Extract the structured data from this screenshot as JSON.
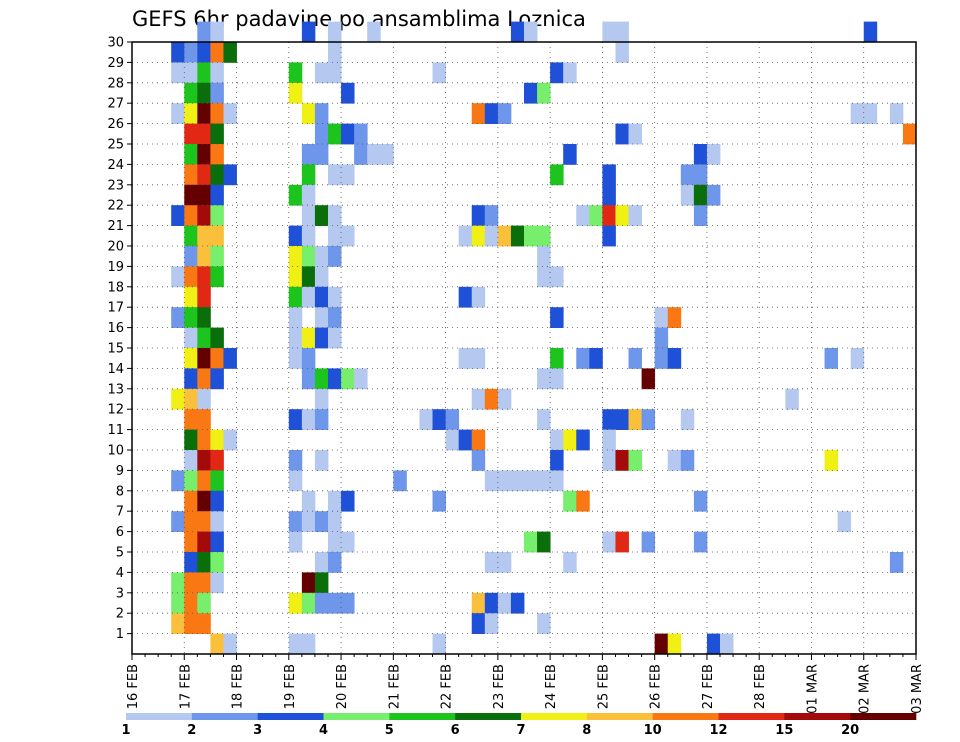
{
  "chart_data": {
    "type": "heatmap",
    "title": "GEFS 6hr padavine po ansamblima Loznica",
    "xlabel": "",
    "ylabel": "",
    "x_ticks": [
      "16 FEB",
      "17 FEB",
      "18 FEB",
      "19 FEB",
      "20 FEB",
      "21 FEB",
      "22 FEB",
      "23 FEB",
      "24 FEB",
      "25 FEB",
      "26 FEB",
      "27 FEB",
      "28 FEB",
      "01 MAR",
      "02 MAR",
      "03 MAR"
    ],
    "y_ticks": [
      1,
      2,
      3,
      4,
      5,
      6,
      7,
      8,
      9,
      10,
      11,
      12,
      13,
      14,
      15,
      16,
      17,
      18,
      19,
      20,
      21,
      22,
      23,
      24,
      25,
      26,
      27,
      28,
      29,
      30
    ],
    "grid": true,
    "time_step_hours": 6,
    "colorbar": {
      "labels": [
        "1",
        "2",
        "3",
        "4",
        "5",
        "6",
        "7",
        "8",
        "10",
        "12",
        "15",
        "20"
      ],
      "colors": [
        "#b4c8f0",
        "#6e96ea",
        "#1e50d8",
        "#78ef6c",
        "#1ec41e",
        "#0a6e0a",
        "#f0f014",
        "#fac03c",
        "#fa7814",
        "#e12814",
        "#a50a0a",
        "#640000"
      ]
    },
    "level_palette": [
      "#b4c8f0",
      "#6e96ea",
      "#1e50d8",
      "#78ef6c",
      "#1ec41e",
      "#0a6e0a",
      "#f0f014",
      "#fac03c",
      "#fa7814",
      "#e12814",
      "#a50a0a",
      "#640000"
    ],
    "cells_note": "each cell: [member, x_day (days since 16 FEB), level index into level_palette]",
    "cells": [
      [
        30,
        1.25,
        1
      ],
      [
        30,
        1.5,
        0
      ],
      [
        30,
        3.25,
        2
      ],
      [
        30,
        3.75,
        0
      ],
      [
        30,
        4.5,
        0
      ],
      [
        30,
        7.25,
        2
      ],
      [
        30,
        7.5,
        0
      ],
      [
        30,
        9.0,
        0
      ],
      [
        30,
        9.25,
        0
      ],
      [
        30,
        14.0,
        2
      ],
      [
        29,
        0.75,
        2
      ],
      [
        29,
        1.0,
        1
      ],
      [
        29,
        1.25,
        2
      ],
      [
        29,
        1.5,
        8
      ],
      [
        29,
        1.75,
        5
      ],
      [
        29,
        3.75,
        0
      ],
      [
        29,
        9.25,
        0
      ],
      [
        28,
        0.75,
        0
      ],
      [
        28,
        1.0,
        0
      ],
      [
        28,
        1.25,
        4
      ],
      [
        28,
        1.5,
        0
      ],
      [
        28,
        3.0,
        4
      ],
      [
        28,
        3.5,
        0
      ],
      [
        28,
        3.75,
        0
      ],
      [
        28,
        5.75,
        0
      ],
      [
        28,
        8.0,
        2
      ],
      [
        28,
        8.25,
        0
      ],
      [
        27,
        1.0,
        4
      ],
      [
        27,
        1.25,
        5
      ],
      [
        27,
        1.5,
        1
      ],
      [
        27,
        3.0,
        6
      ],
      [
        27,
        4.0,
        2
      ],
      [
        27,
        7.5,
        2
      ],
      [
        27,
        7.75,
        3
      ],
      [
        26,
        0.75,
        0
      ],
      [
        26,
        1.0,
        6
      ],
      [
        26,
        1.25,
        11
      ],
      [
        26,
        1.5,
        8
      ],
      [
        26,
        1.75,
        0
      ],
      [
        26,
        3.25,
        6
      ],
      [
        26,
        3.5,
        1
      ],
      [
        26,
        6.5,
        8
      ],
      [
        26,
        6.75,
        2
      ],
      [
        26,
        7.0,
        1
      ],
      [
        26,
        13.75,
        0
      ],
      [
        26,
        14.0,
        0
      ],
      [
        26,
        14.5,
        0
      ],
      [
        25,
        1.0,
        9
      ],
      [
        25,
        1.25,
        9
      ],
      [
        25,
        1.5,
        5
      ],
      [
        25,
        3.5,
        1
      ],
      [
        25,
        3.75,
        4
      ],
      [
        25,
        4.0,
        2
      ],
      [
        25,
        4.25,
        1
      ],
      [
        25,
        9.25,
        2
      ],
      [
        25,
        9.5,
        0
      ],
      [
        25,
        14.75,
        8
      ],
      [
        24,
        1.0,
        4
      ],
      [
        24,
        1.25,
        11
      ],
      [
        24,
        1.5,
        8
      ],
      [
        24,
        3.25,
        1
      ],
      [
        24,
        3.5,
        1
      ],
      [
        24,
        4.25,
        1
      ],
      [
        24,
        4.5,
        0
      ],
      [
        24,
        4.75,
        0
      ],
      [
        24,
        8.25,
        2
      ],
      [
        24,
        10.75,
        2
      ],
      [
        24,
        11.0,
        0
      ],
      [
        23,
        1.0,
        8
      ],
      [
        23,
        1.25,
        9
      ],
      [
        23,
        1.5,
        5
      ],
      [
        23,
        1.75,
        2
      ],
      [
        23,
        3.25,
        4
      ],
      [
        23,
        3.75,
        0
      ],
      [
        23,
        4.0,
        0
      ],
      [
        23,
        8.0,
        4
      ],
      [
        23,
        9.0,
        2
      ],
      [
        23,
        10.5,
        1
      ],
      [
        23,
        10.75,
        1
      ],
      [
        22,
        1.0,
        11
      ],
      [
        22,
        1.25,
        11
      ],
      [
        22,
        1.5,
        2
      ],
      [
        22,
        3.0,
        4
      ],
      [
        22,
        3.25,
        0
      ],
      [
        22,
        9.0,
        2
      ],
      [
        22,
        10.5,
        0
      ],
      [
        22,
        10.75,
        5
      ],
      [
        22,
        11.0,
        1
      ],
      [
        21,
        0.75,
        2
      ],
      [
        21,
        1.0,
        8
      ],
      [
        21,
        1.25,
        10
      ],
      [
        21,
        1.5,
        3
      ],
      [
        21,
        3.25,
        0
      ],
      [
        21,
        3.5,
        5
      ],
      [
        21,
        3.75,
        0
      ],
      [
        21,
        6.5,
        2
      ],
      [
        21,
        6.75,
        1
      ],
      [
        21,
        8.5,
        0
      ],
      [
        21,
        8.75,
        3
      ],
      [
        21,
        9.0,
        9
      ],
      [
        21,
        9.25,
        6
      ],
      [
        21,
        9.5,
        0
      ],
      [
        21,
        10.75,
        1
      ],
      [
        20,
        1.0,
        4
      ],
      [
        20,
        1.25,
        7
      ],
      [
        20,
        1.5,
        7
      ],
      [
        20,
        3.0,
        2
      ],
      [
        20,
        3.25,
        0
      ],
      [
        20,
        3.75,
        0
      ],
      [
        20,
        4.0,
        0
      ],
      [
        20,
        6.25,
        0
      ],
      [
        20,
        6.5,
        6
      ],
      [
        20,
        6.75,
        0
      ],
      [
        20,
        7.0,
        7
      ],
      [
        20,
        7.25,
        5
      ],
      [
        20,
        7.5,
        3
      ],
      [
        20,
        7.75,
        3
      ],
      [
        20,
        9.0,
        2
      ],
      [
        19,
        1.0,
        1
      ],
      [
        19,
        1.25,
        7
      ],
      [
        19,
        1.5,
        3
      ],
      [
        19,
        3.0,
        6
      ],
      [
        19,
        3.25,
        3
      ],
      [
        19,
        3.5,
        0
      ],
      [
        19,
        3.75,
        1
      ],
      [
        19,
        7.75,
        0
      ],
      [
        18,
        0.75,
        0
      ],
      [
        18,
        1.0,
        8
      ],
      [
        18,
        1.25,
        9
      ],
      [
        18,
        1.5,
        4
      ],
      [
        18,
        3.0,
        6
      ],
      [
        18,
        3.25,
        5
      ],
      [
        18,
        3.5,
        0
      ],
      [
        18,
        7.75,
        0
      ],
      [
        18,
        8.0,
        0
      ],
      [
        17,
        1.0,
        6
      ],
      [
        17,
        1.25,
        9
      ],
      [
        17,
        3.0,
        4
      ],
      [
        17,
        3.25,
        0
      ],
      [
        17,
        3.5,
        2
      ],
      [
        17,
        3.75,
        0
      ],
      [
        17,
        6.25,
        2
      ],
      [
        17,
        6.5,
        0
      ],
      [
        16,
        0.75,
        1
      ],
      [
        16,
        1.0,
        4
      ],
      [
        16,
        1.25,
        5
      ],
      [
        16,
        3.0,
        0
      ],
      [
        16,
        3.5,
        0
      ],
      [
        16,
        3.75,
        1
      ],
      [
        16,
        8.0,
        2
      ],
      [
        16,
        10.0,
        0
      ],
      [
        16,
        10.25,
        8
      ],
      [
        15,
        1.0,
        0
      ],
      [
        15,
        1.25,
        4
      ],
      [
        15,
        1.5,
        5
      ],
      [
        15,
        3.0,
        0
      ],
      [
        15,
        3.25,
        6
      ],
      [
        15,
        3.5,
        2
      ],
      [
        15,
        3.75,
        0
      ],
      [
        15,
        10.0,
        1
      ],
      [
        14,
        1.0,
        6
      ],
      [
        14,
        1.25,
        11
      ],
      [
        14,
        1.5,
        8
      ],
      [
        14,
        1.75,
        2
      ],
      [
        14,
        3.0,
        0
      ],
      [
        14,
        3.25,
        1
      ],
      [
        14,
        6.25,
        0
      ],
      [
        14,
        6.5,
        0
      ],
      [
        14,
        8.0,
        4
      ],
      [
        14,
        8.5,
        1
      ],
      [
        14,
        8.75,
        2
      ],
      [
        14,
        9.5,
        1
      ],
      [
        14,
        10.0,
        1
      ],
      [
        14,
        10.25,
        2
      ],
      [
        14,
        13.25,
        1
      ],
      [
        14,
        13.75,
        0
      ],
      [
        13,
        1.0,
        2
      ],
      [
        13,
        1.25,
        8
      ],
      [
        13,
        1.5,
        2
      ],
      [
        13,
        3.25,
        1
      ],
      [
        13,
        3.5,
        4
      ],
      [
        13,
        3.75,
        2
      ],
      [
        13,
        4.0,
        3
      ],
      [
        13,
        4.25,
        0
      ],
      [
        13,
        7.75,
        0
      ],
      [
        13,
        8.0,
        0
      ],
      [
        13,
        9.75,
        11
      ],
      [
        12,
        0.75,
        6
      ],
      [
        12,
        1.0,
        7
      ],
      [
        12,
        1.25,
        0
      ],
      [
        12,
        3.5,
        0
      ],
      [
        12,
        6.5,
        0
      ],
      [
        12,
        6.75,
        8
      ],
      [
        12,
        7.0,
        0
      ],
      [
        12,
        12.5,
        0
      ],
      [
        11,
        1.0,
        8
      ],
      [
        11,
        1.25,
        8
      ],
      [
        11,
        3.0,
        2
      ],
      [
        11,
        3.25,
        0
      ],
      [
        11,
        3.5,
        1
      ],
      [
        11,
        5.5,
        0
      ],
      [
        11,
        5.75,
        2
      ],
      [
        11,
        6.0,
        1
      ],
      [
        11,
        7.75,
        0
      ],
      [
        11,
        9.0,
        2
      ],
      [
        11,
        9.25,
        2
      ],
      [
        11,
        9.5,
        7
      ],
      [
        11,
        9.75,
        1
      ],
      [
        11,
        10.5,
        0
      ],
      [
        10,
        1.0,
        5
      ],
      [
        10,
        1.25,
        8
      ],
      [
        10,
        1.5,
        6
      ],
      [
        10,
        1.75,
        0
      ],
      [
        10,
        6.0,
        0
      ],
      [
        10,
        6.25,
        2
      ],
      [
        10,
        6.5,
        8
      ],
      [
        10,
        8.0,
        0
      ],
      [
        10,
        8.25,
        6
      ],
      [
        10,
        8.5,
        2
      ],
      [
        10,
        9.0,
        0
      ],
      [
        9,
        1.0,
        0
      ],
      [
        9,
        1.25,
        10
      ],
      [
        9,
        1.5,
        9
      ],
      [
        9,
        3.0,
        1
      ],
      [
        9,
        3.5,
        0
      ],
      [
        9,
        6.5,
        1
      ],
      [
        9,
        8.0,
        2
      ],
      [
        9,
        9.0,
        0
      ],
      [
        9,
        9.25,
        10
      ],
      [
        9,
        9.5,
        3
      ],
      [
        9,
        10.25,
        0
      ],
      [
        9,
        10.5,
        1
      ],
      [
        9,
        13.25,
        6
      ],
      [
        8,
        0.75,
        1
      ],
      [
        8,
        1.0,
        3
      ],
      [
        8,
        1.25,
        8
      ],
      [
        8,
        1.5,
        4
      ],
      [
        8,
        3.0,
        0
      ],
      [
        8,
        5.0,
        1
      ],
      [
        8,
        6.75,
        0
      ],
      [
        8,
        7.0,
        0
      ],
      [
        8,
        7.25,
        0
      ],
      [
        8,
        7.5,
        0
      ],
      [
        8,
        7.75,
        0
      ],
      [
        8,
        8.0,
        0
      ],
      [
        7,
        1.0,
        8
      ],
      [
        7,
        1.25,
        11
      ],
      [
        7,
        1.5,
        2
      ],
      [
        7,
        3.25,
        0
      ],
      [
        7,
        3.75,
        0
      ],
      [
        7,
        4.0,
        2
      ],
      [
        7,
        5.75,
        1
      ],
      [
        7,
        8.25,
        3
      ],
      [
        7,
        8.5,
        8
      ],
      [
        7,
        10.75,
        1
      ],
      [
        6,
        0.75,
        1
      ],
      [
        6,
        1.0,
        8
      ],
      [
        6,
        1.25,
        8
      ],
      [
        6,
        1.5,
        0
      ],
      [
        6,
        3.0,
        1
      ],
      [
        6,
        3.25,
        0
      ],
      [
        6,
        3.5,
        1
      ],
      [
        6,
        3.75,
        0
      ],
      [
        6,
        13.5,
        0
      ],
      [
        5,
        1.0,
        8
      ],
      [
        5,
        1.25,
        10
      ],
      [
        5,
        1.5,
        2
      ],
      [
        5,
        3.0,
        0
      ],
      [
        5,
        3.75,
        0
      ],
      [
        5,
        4.0,
        0
      ],
      [
        5,
        7.5,
        3
      ],
      [
        5,
        7.75,
        5
      ],
      [
        5,
        9.0,
        0
      ],
      [
        5,
        9.25,
        9
      ],
      [
        5,
        9.75,
        1
      ],
      [
        5,
        10.75,
        1
      ],
      [
        4,
        1.0,
        2
      ],
      [
        4,
        1.25,
        5
      ],
      [
        4,
        1.5,
        3
      ],
      [
        4,
        3.5,
        0
      ],
      [
        4,
        3.75,
        1
      ],
      [
        4,
        6.75,
        0
      ],
      [
        4,
        7.0,
        0
      ],
      [
        4,
        8.25,
        0
      ],
      [
        4,
        14.5,
        1
      ],
      [
        3,
        0.75,
        3
      ],
      [
        3,
        1.0,
        8
      ],
      [
        3,
        1.25,
        8
      ],
      [
        3,
        1.5,
        0
      ],
      [
        3,
        3.25,
        11
      ],
      [
        3,
        3.5,
        5
      ],
      [
        2,
        0.75,
        3
      ],
      [
        2,
        1.0,
        8
      ],
      [
        2,
        1.25,
        3
      ],
      [
        2,
        3.0,
        6
      ],
      [
        2,
        3.25,
        3
      ],
      [
        2,
        3.5,
        1
      ],
      [
        2,
        3.75,
        1
      ],
      [
        2,
        4.0,
        1
      ],
      [
        2,
        6.5,
        7
      ],
      [
        2,
        6.75,
        2
      ],
      [
        2,
        7.0,
        0
      ],
      [
        2,
        7.25,
        2
      ],
      [
        1,
        0.75,
        7
      ],
      [
        1,
        1.0,
        8
      ],
      [
        1,
        1.25,
        8
      ],
      [
        1,
        6.5,
        2
      ],
      [
        1,
        6.75,
        0
      ],
      [
        1,
        7.75,
        0
      ],
      [
        0,
        1.5,
        7
      ],
      [
        0,
        1.75,
        0
      ],
      [
        0,
        3.0,
        0
      ],
      [
        0,
        3.25,
        0
      ],
      [
        0,
        5.75,
        0
      ],
      [
        0,
        10.0,
        11
      ],
      [
        0,
        10.25,
        6
      ],
      [
        0,
        11.0,
        2
      ],
      [
        0,
        11.25,
        0
      ]
    ]
  }
}
